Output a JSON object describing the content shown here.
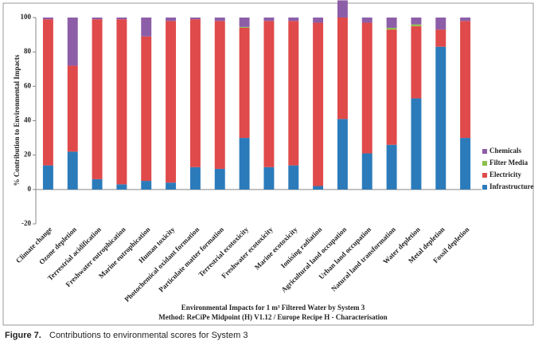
{
  "chart_data": {
    "type": "stacked-bar",
    "title": "Environmental Impacts for 1 m³ Filtered Water by System 3",
    "subtitle": "Method: ReCiPe Midpoint (H) V1.12 / Europe Recipe H - Characterisation",
    "y_label": "% Contribution to Environmental Impacts",
    "categories": [
      "Climate change",
      "Ozone depletion",
      "Terrestrial acidification",
      "Freshwater eutrophication",
      "Marine eutrophication",
      "Human toxicity",
      "Photochemical oxidant formation",
      "Particulate matter formation",
      "Terrestrial ecotoxicity",
      "Freshwater ecotoxicity",
      "Marine ecotoxicity",
      "Ionising radiation",
      "Agricultural land occupation",
      "Urban land occupation",
      "Natural land transformation",
      "Water depletion",
      "Metal depletion",
      "Fossil depletion"
    ],
    "series": [
      {
        "name": "Infrastructure",
        "color": "#2b7bbb",
        "values": [
          14,
          22,
          6,
          3,
          5,
          4,
          13,
          12,
          30,
          13,
          14,
          2,
          41,
          21,
          26,
          53,
          83,
          30
        ]
      },
      {
        "name": "Electricity",
        "color": "#e04a4a",
        "values": [
          85,
          50,
          93,
          96,
          84,
          94,
          86,
          86,
          64,
          85,
          84,
          95,
          59,
          76,
          67,
          42,
          10,
          68
        ]
      },
      {
        "name": "Filter Media",
        "color": "#8cc04c",
        "values": [
          0,
          0,
          0,
          0,
          0,
          0,
          0,
          0,
          0.5,
          0,
          0,
          0,
          0,
          0,
          1,
          1,
          0,
          0
        ]
      },
      {
        "name": "Chemicals",
        "color": "#8d5ea8",
        "values": [
          1,
          28,
          1,
          1,
          11,
          2,
          1,
          2,
          5.5,
          2,
          2,
          3,
          10,
          3,
          6,
          4,
          7,
          2
        ]
      }
    ],
    "ylim": [
      -20,
      100
    ],
    "yticks": [
      -20,
      0,
      20,
      40,
      60,
      80,
      100
    ],
    "legend": "right"
  },
  "caption_label": "Figure 7.",
  "caption_text": "Contributions to environmental scores for System 3"
}
